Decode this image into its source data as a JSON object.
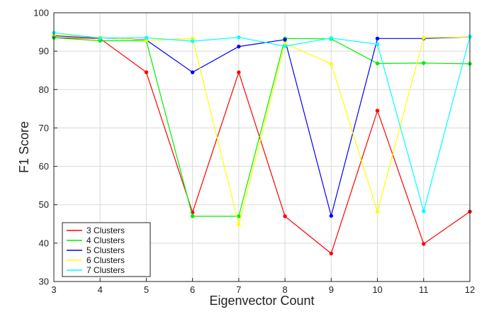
{
  "chart_data": {
    "type": "line",
    "title": "",
    "xlabel": "Eigenvector Count",
    "ylabel": "F1 Score",
    "x": [
      3,
      4,
      5,
      6,
      7,
      8,
      9,
      10,
      11,
      12
    ],
    "xlim": [
      3,
      12
    ],
    "ylim": [
      30,
      100
    ],
    "xticks": [
      3,
      4,
      5,
      6,
      7,
      8,
      9,
      10,
      11,
      12
    ],
    "yticks": [
      30,
      40,
      50,
      60,
      70,
      80,
      90,
      100
    ],
    "grid": true,
    "legend_position": "bottom-left",
    "series": [
      {
        "name": "3 Clusters",
        "color": "#ff0000",
        "values": [
          93.5,
          93.3,
          84.5,
          48.0,
          84.5,
          47.0,
          37.3,
          74.5,
          39.8,
          48.2
        ]
      },
      {
        "name": "4 Clusters",
        "color": "#00ee00",
        "values": [
          93.5,
          92.7,
          92.7,
          47.0,
          47.0,
          93.3,
          93.2,
          86.8,
          86.9,
          86.7
        ]
      },
      {
        "name": "5 Clusters",
        "color": "#0000ff",
        "values": [
          94.0,
          93.5,
          92.9,
          84.5,
          91.2,
          93.0,
          47.1,
          93.3,
          93.3,
          93.7
        ]
      },
      {
        "name": "6 Clusters",
        "color": "#ffff00",
        "values": [
          94.2,
          93.6,
          92.8,
          93.3,
          44.8,
          92.0,
          86.7,
          48.2,
          93.5,
          93.7
        ]
      },
      {
        "name": "7 Clusters",
        "color": "#00ffff",
        "values": [
          94.8,
          93.4,
          93.5,
          92.6,
          93.6,
          91.3,
          93.4,
          91.8,
          48.3,
          93.8
        ]
      }
    ]
  }
}
